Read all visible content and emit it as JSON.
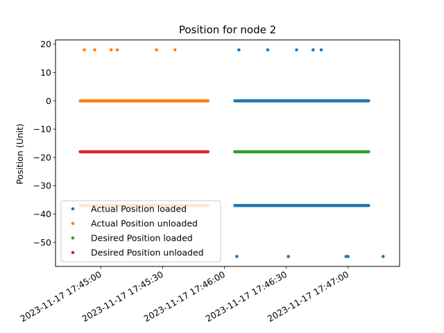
{
  "chart_data": {
    "type": "scatter",
    "title": "Position for node 2",
    "xlabel": "",
    "ylabel": "Position (Unit)",
    "x_tick_labels": [
      "2023-11-17 17:45:00",
      "2023-11-17 17:45:30",
      "2023-11-17 17:46:00",
      "2023-11-17 17:46:30",
      "2023-11-17 17:47:00"
    ],
    "x_ticks": [
      "2023-11-17T17:45:00",
      "2023-11-17T17:45:30",
      "2023-11-17T17:46:00",
      "2023-11-17T17:46:30",
      "2023-11-17T17:47:00"
    ],
    "xlim": [
      "2023-11-17T17:44:38",
      "2023-11-17T17:47:25"
    ],
    "y_ticks": [
      20,
      10,
      0,
      -10,
      -20,
      -30,
      -40,
      -50
    ],
    "y_tick_labels": [
      "20",
      "10",
      "0",
      "−10",
      "−20",
      "−30",
      "−40",
      "−50"
    ],
    "ylim": [
      -58.5,
      21.5
    ],
    "grid": false,
    "legend_position": "lower-left",
    "series": [
      {
        "name": "Actual Position loaded",
        "color": "#1f77b4",
        "bands": [
          {
            "x_start": "2023-11-17T17:46:05",
            "x_end": "2023-11-17T17:47:10",
            "y": 0
          },
          {
            "x_start": "2023-11-17T17:46:05",
            "x_end": "2023-11-17T17:47:10",
            "y": -37
          }
        ],
        "points": [
          {
            "x": "2023-11-17T17:46:07",
            "y": 18
          },
          {
            "x": "2023-11-17T17:46:21",
            "y": 18
          },
          {
            "x": "2023-11-17T17:46:35",
            "y": 18
          },
          {
            "x": "2023-11-17T17:46:43",
            "y": 18
          },
          {
            "x": "2023-11-17T17:46:47",
            "y": 18
          },
          {
            "x": "2023-11-17T17:46:06",
            "y": -55
          },
          {
            "x": "2023-11-17T17:46:31",
            "y": -55
          },
          {
            "x": "2023-11-17T17:46:59",
            "y": -55
          },
          {
            "x": "2023-11-17T17:47:00",
            "y": -55
          },
          {
            "x": "2023-11-17T17:47:17",
            "y": -55
          }
        ]
      },
      {
        "name": "Actual Position unloaded",
        "color": "#ff7f0e",
        "bands": [
          {
            "x_start": "2023-11-17T17:44:50",
            "x_end": "2023-11-17T17:45:52",
            "y": 0
          },
          {
            "x_start": "2023-11-17T17:44:50",
            "x_end": "2023-11-17T17:45:52",
            "y": -37
          }
        ],
        "points": [
          {
            "x": "2023-11-17T17:44:52",
            "y": 18
          },
          {
            "x": "2023-11-17T17:44:57",
            "y": 18
          },
          {
            "x": "2023-11-17T17:45:05",
            "y": 18
          },
          {
            "x": "2023-11-17T17:45:08",
            "y": 18
          },
          {
            "x": "2023-11-17T17:45:27",
            "y": 18
          },
          {
            "x": "2023-11-17T17:45:36",
            "y": 18
          }
        ]
      },
      {
        "name": "Desired Position loaded",
        "color": "#2ca02c",
        "bands": [
          {
            "x_start": "2023-11-17T17:46:05",
            "x_end": "2023-11-17T17:47:10",
            "y": -18
          }
        ],
        "points": []
      },
      {
        "name": "Desired Position unloaded",
        "color": "#d62728",
        "bands": [
          {
            "x_start": "2023-11-17T17:44:50",
            "x_end": "2023-11-17T17:45:52",
            "y": -18
          }
        ],
        "points": []
      }
    ]
  }
}
